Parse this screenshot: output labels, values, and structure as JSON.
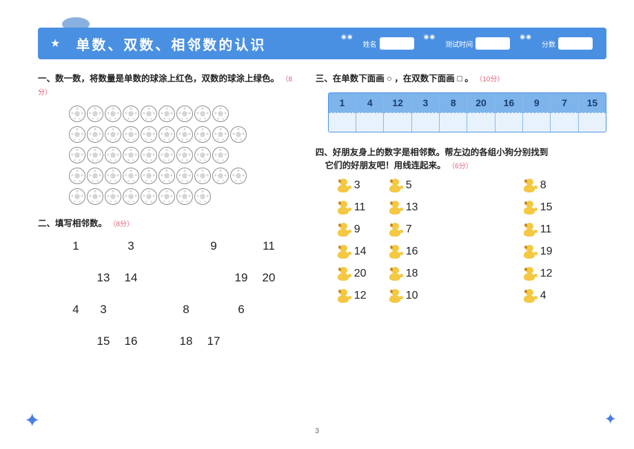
{
  "header": {
    "title": "单数、双数、相邻数的认识",
    "fields": [
      {
        "label": "姓名"
      },
      {
        "label": "测试时间"
      },
      {
        "label": "分数"
      }
    ]
  },
  "section1": {
    "title": "一、数一数，将数量是单数的球涂上红色，双数的球涂上绿色。",
    "points": "（8分）",
    "ball_rows": [
      9,
      10,
      9,
      10,
      8
    ]
  },
  "section2": {
    "title": "二、填写相邻数。",
    "points": "（8分）",
    "rows": [
      [
        "1",
        "",
        "3",
        "",
        "",
        "9",
        "",
        "11"
      ],
      [
        "",
        "13",
        "14",
        "",
        "",
        "",
        "19",
        "20"
      ],
      [
        "4",
        "3",
        "",
        "",
        "8",
        "",
        "6",
        ""
      ],
      [
        "",
        "15",
        "16",
        "",
        "18",
        "17",
        "",
        ""
      ]
    ]
  },
  "section3": {
    "title": "三、在单数下面画 ○ ，在双数下面画 □ 。",
    "points": "（10分）",
    "numbers": [
      "1",
      "4",
      "12",
      "3",
      "8",
      "20",
      "16",
      "9",
      "7",
      "15"
    ]
  },
  "section4": {
    "title_line1": "四、好朋友身上的数字是相邻数。帮左边的各组小狗分别找到",
    "title_line2": "它们的好朋友吧！用线连起来。",
    "points": "（6分）",
    "rows": [
      {
        "left": [
          "3",
          "5"
        ],
        "right": "8"
      },
      {
        "left": [
          "11",
          "13"
        ],
        "right": "15"
      },
      {
        "left": [
          "9",
          "7"
        ],
        "right": "11"
      },
      {
        "left": [
          "14",
          "16"
        ],
        "right": "19"
      },
      {
        "left": [
          "20",
          "18"
        ],
        "right": "12"
      },
      {
        "left": [
          "12",
          "10"
        ],
        "right": "4"
      }
    ]
  },
  "page_number": "3",
  "colors": {
    "header_bg": "#4a90e2",
    "accent": "#e85d75",
    "table_head": "#7db4ec",
    "dog_body": "#f4c842"
  }
}
